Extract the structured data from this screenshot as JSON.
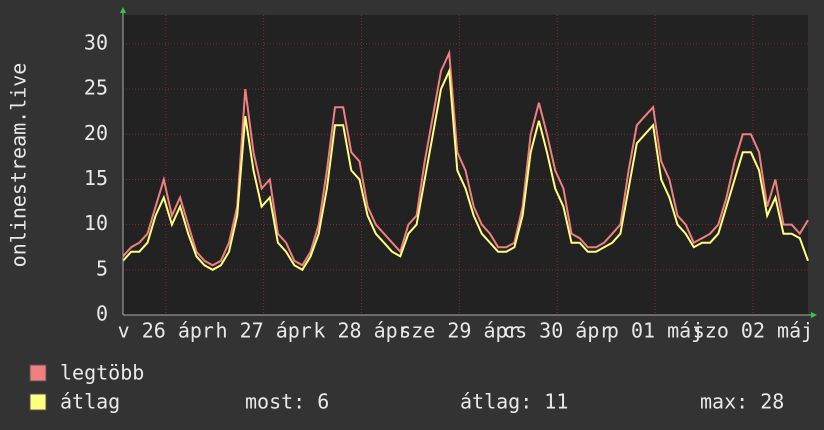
{
  "chart_data": {
    "type": "line",
    "ylabel": "onlinestream.live",
    "x": [
      0,
      2,
      4,
      6,
      8,
      10,
      12,
      14,
      16,
      18,
      20,
      22,
      24,
      26,
      28,
      30,
      32,
      34,
      36,
      38,
      40,
      42,
      44,
      46,
      48,
      50,
      52,
      54,
      56,
      58,
      60,
      62,
      64,
      66,
      68,
      70,
      72,
      74,
      76,
      78,
      80,
      82,
      84,
      86,
      88,
      90,
      92,
      94,
      96,
      98,
      100,
      102,
      104,
      106,
      108,
      110,
      112,
      114,
      116,
      118,
      120,
      122,
      124,
      126,
      128,
      130,
      132,
      134,
      136,
      138,
      140,
      142,
      144,
      146,
      148,
      150,
      152,
      154,
      156,
      158,
      160,
      162,
      164,
      166,
      168
    ],
    "series": [
      {
        "name": "legtöbb",
        "color": "#f08080",
        "values": [
          6.5,
          7.5,
          8,
          9,
          12,
          15,
          11,
          13,
          10,
          7,
          6,
          5.5,
          6,
          8,
          12,
          25,
          18,
          14,
          15,
          9,
          8,
          6,
          5.5,
          7,
          10,
          16,
          23,
          23,
          18,
          17,
          12,
          10,
          9,
          8,
          7,
          10,
          11,
          17,
          22,
          27,
          29,
          18,
          16,
          12,
          10,
          9,
          7.5,
          7.5,
          8,
          12,
          20,
          23.5,
          20,
          16,
          14,
          9,
          8.5,
          7.5,
          7.5,
          8,
          9,
          10,
          16,
          21,
          22,
          23,
          17,
          15,
          11,
          10,
          8,
          8.5,
          9,
          10,
          13,
          17,
          20,
          20,
          18,
          12,
          15,
          10,
          10,
          9,
          10.5
        ]
      },
      {
        "name": "átlag",
        "color": "#ffff80",
        "values": [
          6,
          7,
          7,
          8,
          11,
          13,
          10,
          12,
          9,
          6.5,
          5.5,
          5,
          5.5,
          7,
          11,
          22,
          16,
          12,
          13,
          8,
          7,
          5.5,
          5,
          6.5,
          9,
          14,
          21,
          21,
          16,
          15,
          11,
          9,
          8,
          7,
          6.5,
          9,
          10,
          15,
          20,
          25,
          27,
          16,
          14,
          11,
          9,
          8,
          7,
          7,
          7.5,
          11,
          18,
          21.5,
          18,
          14,
          12,
          8,
          8,
          7,
          7,
          7.5,
          8,
          9,
          14,
          19,
          20,
          21,
          15,
          13,
          10,
          9,
          7.5,
          8,
          8,
          9,
          12,
          15,
          18,
          18,
          16,
          11,
          13,
          9,
          9,
          8.5,
          6
        ]
      }
    ],
    "xlim": [
      0,
      168
    ],
    "xticks": [
      {
        "value": 10.5,
        "label": "v 26 ápr"
      },
      {
        "value": 34.5,
        "label": "h 27 ápr"
      },
      {
        "value": 58.5,
        "label": "k 28 ápr"
      },
      {
        "value": 82.5,
        "label": "sze 29 ápr"
      },
      {
        "value": 106.5,
        "label": "cs 30 ápr"
      },
      {
        "value": 130.5,
        "label": "p 01 máj"
      },
      {
        "value": 154.5,
        "label": "szo 02 máj"
      }
    ],
    "ylim": [
      0,
      33.2
    ],
    "yticks": [
      0,
      5,
      10,
      15,
      20,
      25,
      30
    ],
    "grid": true,
    "stats": [
      "most: 6",
      "átlag: 11",
      "max: 28"
    ]
  }
}
